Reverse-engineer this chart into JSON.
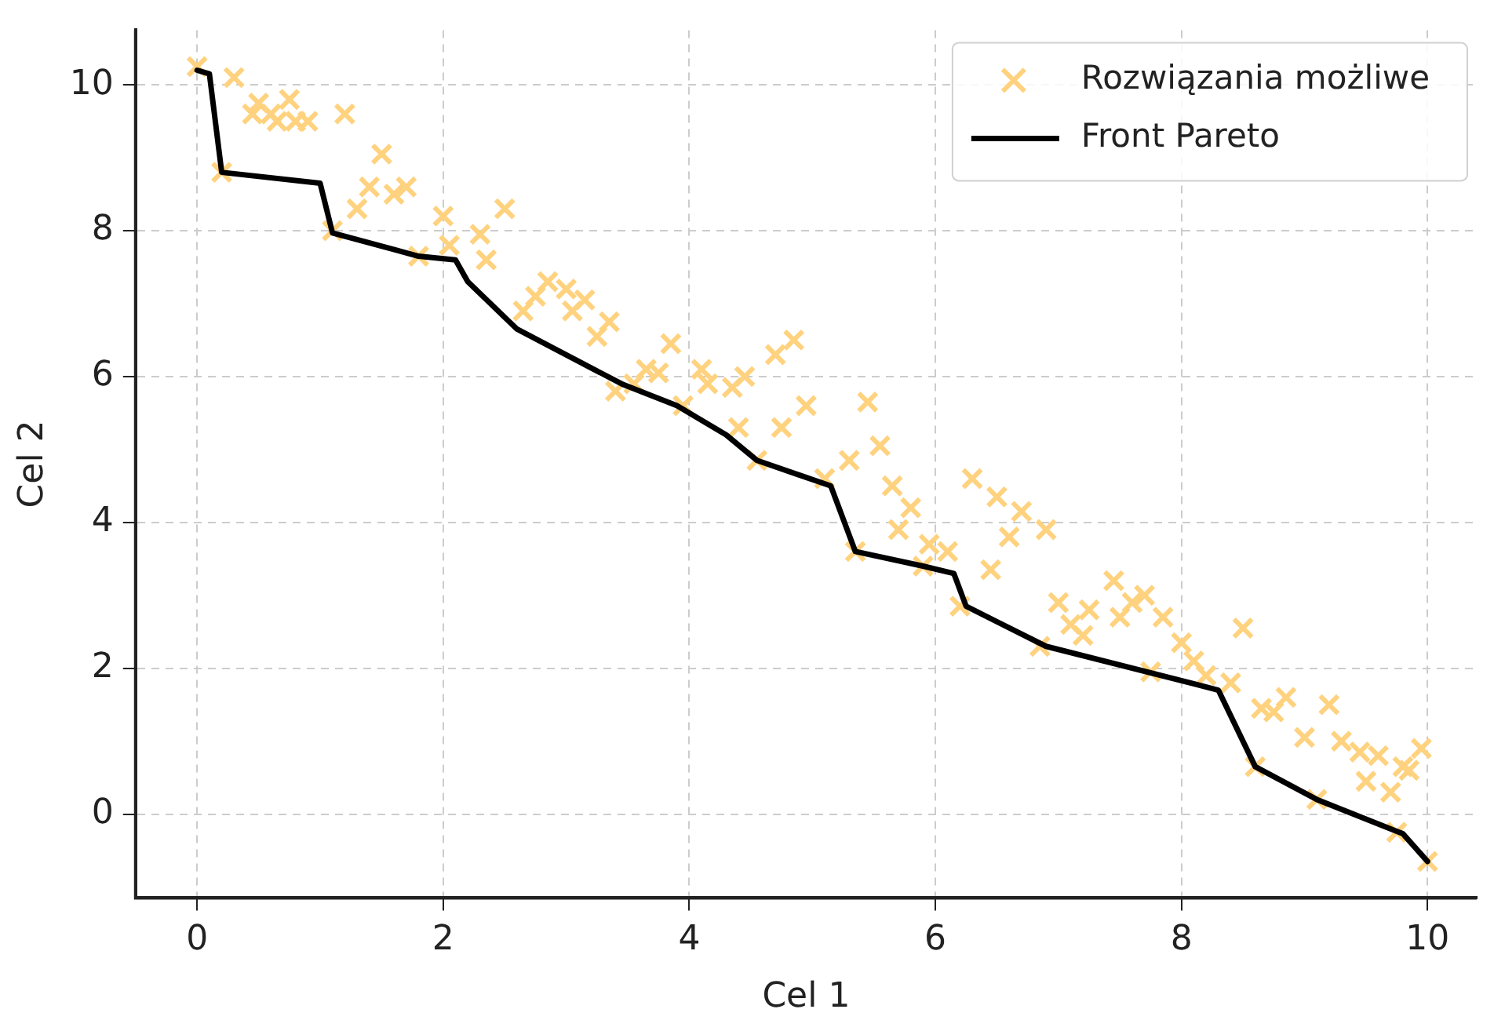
{
  "chart_data": {
    "type": "scatter",
    "xlabel": "Cel 1",
    "ylabel": "Cel 2",
    "xlim": [
      -0.5,
      10.4
    ],
    "ylim": [
      -1.15,
      10.75
    ],
    "xticks": [
      0,
      2,
      4,
      6,
      8,
      10
    ],
    "yticks": [
      0,
      2,
      4,
      6,
      8,
      10
    ],
    "grid": true,
    "legend": "top right",
    "marker": "cross",
    "series": [
      {
        "name": "Rozwiązania możliwe",
        "color": "#ffd27f",
        "x": [
          0.0,
          0.3,
          0.2,
          0.45,
          0.5,
          0.65,
          0.6,
          0.75,
          0.8,
          0.9,
          1.2,
          1.1,
          1.3,
          1.4,
          1.5,
          1.6,
          1.7,
          1.8,
          2.0,
          2.05,
          2.35,
          2.3,
          2.5,
          2.65,
          2.75,
          2.85,
          3.0,
          3.05,
          3.15,
          3.25,
          3.35,
          3.4,
          3.55,
          3.65,
          3.75,
          3.85,
          3.95,
          4.1,
          4.15,
          4.35,
          4.4,
          4.45,
          4.55,
          4.7,
          4.75,
          4.85,
          4.95,
          5.1,
          5.3,
          5.35,
          5.45,
          5.55,
          5.65,
          5.7,
          5.8,
          5.9,
          5.95,
          6.1,
          6.2,
          6.3,
          6.45,
          6.5,
          6.6,
          6.7,
          6.85,
          6.9,
          7.0,
          7.1,
          7.2,
          7.25,
          7.45,
          7.5,
          7.6,
          7.7,
          7.75,
          7.85,
          8.0,
          8.1,
          8.2,
          8.4,
          8.5,
          8.6,
          8.65,
          8.75,
          8.85,
          9.0,
          9.1,
          9.2,
          9.3,
          9.45,
          9.5,
          9.6,
          9.7,
          9.8,
          9.85,
          9.95,
          9.75,
          10.0
        ],
        "values": [
          10.25,
          10.1,
          8.8,
          9.6,
          9.75,
          9.5,
          9.6,
          9.8,
          9.5,
          9.5,
          9.6,
          8.0,
          8.3,
          8.6,
          9.05,
          8.5,
          8.6,
          7.65,
          8.2,
          7.8,
          7.6,
          7.95,
          8.3,
          6.9,
          7.1,
          7.3,
          7.2,
          6.9,
          7.05,
          6.55,
          6.75,
          5.8,
          5.9,
          6.1,
          6.05,
          6.45,
          5.6,
          6.1,
          5.9,
          5.85,
          5.3,
          6.0,
          4.85,
          6.3,
          5.3,
          6.5,
          5.6,
          4.6,
          4.85,
          3.6,
          5.65,
          5.05,
          4.5,
          3.9,
          4.2,
          3.4,
          3.7,
          3.6,
          2.85,
          4.6,
          3.35,
          4.35,
          3.8,
          4.15,
          2.3,
          3.9,
          2.9,
          2.6,
          2.45,
          2.8,
          3.2,
          2.7,
          2.9,
          3.0,
          1.95,
          2.7,
          2.35,
          2.1,
          1.9,
          1.8,
          2.55,
          0.65,
          1.45,
          1.4,
          1.6,
          1.05,
          0.2,
          1.5,
          1.0,
          0.85,
          0.45,
          0.8,
          0.3,
          0.65,
          0.6,
          0.9,
          -0.25,
          -0.65
        ]
      },
      {
        "name": "Front Pareto",
        "color": "#000000",
        "type": "line",
        "marker": "none",
        "line_style": "solid",
        "x": [
          0.0,
          0.1,
          0.2,
          1.0,
          1.1,
          1.8,
          2.1,
          2.2,
          2.6,
          3.45,
          3.9,
          4.3,
          4.55,
          5.15,
          5.35,
          5.9,
          6.15,
          6.25,
          6.9,
          8.3,
          8.6,
          9.1,
          9.8,
          10.0
        ],
        "values": [
          10.2,
          10.15,
          8.8,
          8.65,
          7.97,
          7.65,
          7.6,
          7.3,
          6.65,
          5.9,
          5.6,
          5.2,
          4.85,
          4.5,
          3.6,
          3.4,
          3.3,
          2.85,
          2.3,
          1.7,
          0.65,
          0.2,
          -0.27,
          -0.65
        ]
      }
    ]
  }
}
